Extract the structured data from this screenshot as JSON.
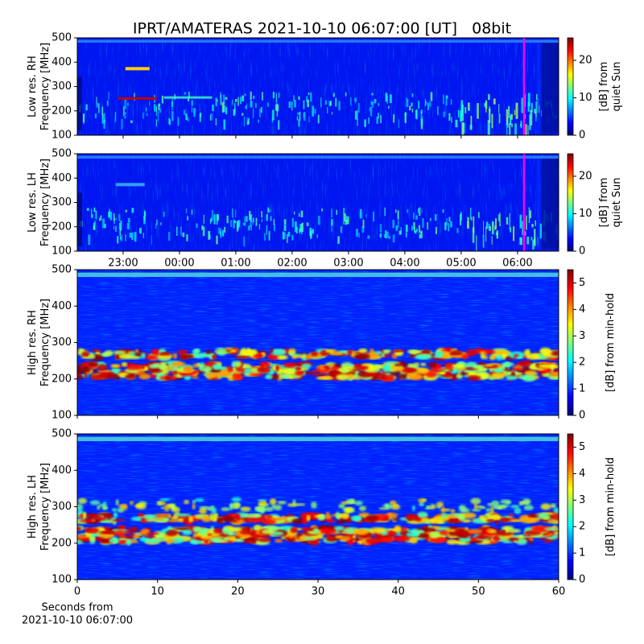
{
  "title": "IPRT/AMATERAS 2021-10-10 06:07:00 [UT]   08bit",
  "chart_data": [
    {
      "type": "heatmap",
      "ylabel": [
        "Low res. RH",
        "Frequency [MHz]"
      ],
      "ylim": [
        100,
        500
      ],
      "yticks": [
        100,
        200,
        300,
        400,
        500
      ],
      "xlim": [
        22.186,
        30.73
      ],
      "colormap": "jet",
      "colorbar": {
        "label": [
          "[dB] from",
          "quiet Sun"
        ],
        "clim": [
          0,
          26
        ],
        "ticks": [
          0,
          10,
          20
        ]
      }
    },
    {
      "type": "heatmap",
      "ylabel": [
        "Low res. LH",
        "Frequency [MHz]"
      ],
      "ylim": [
        100,
        500
      ],
      "yticks": [
        100,
        200,
        300,
        400,
        500
      ],
      "xlim": [
        22.186,
        30.73
      ],
      "colormap": "jet",
      "xticks": [
        {
          "value": 23,
          "label": "23:00"
        },
        {
          "value": 24,
          "label": "00:00"
        },
        {
          "value": 25,
          "label": "01:00"
        },
        {
          "value": 26,
          "label": "02:00"
        },
        {
          "value": 27,
          "label": "03:00"
        },
        {
          "value": 28,
          "label": "04:00"
        },
        {
          "value": 29,
          "label": "05:00"
        },
        {
          "value": 30,
          "label": "06:00"
        }
      ],
      "colorbar": {
        "label": [
          "[dB] from",
          "quiet Sun"
        ],
        "clim": [
          0,
          26
        ],
        "ticks": [
          0,
          10,
          20
        ]
      }
    },
    {
      "type": "heatmap",
      "ylabel": [
        "High res. RH",
        "Frequency [MHz]"
      ],
      "ylim": [
        100,
        500
      ],
      "yticks": [
        100,
        200,
        300,
        400,
        500
      ],
      "xlim": [
        0,
        60
      ],
      "colormap": "jet",
      "colorbar": {
        "label": [
          "[dB] from min-hold"
        ],
        "clim": [
          0,
          5.5
        ],
        "ticks": [
          0,
          1,
          2,
          3,
          4,
          5
        ]
      }
    },
    {
      "type": "heatmap",
      "ylabel": [
        "High res. LH",
        "Frequency [MHz]"
      ],
      "ylim": [
        100,
        500
      ],
      "yticks": [
        100,
        200,
        300,
        400,
        500
      ],
      "xlim": [
        0,
        60
      ],
      "xticks": [
        0,
        10,
        20,
        30,
        40,
        50,
        60
      ],
      "colormap": "jet",
      "xlabel": [
        "Seconds from",
        "2021-10-10 06:07:00"
      ],
      "colorbar": {
        "label": [
          "[dB] from min-hold"
        ],
        "clim": [
          0,
          5.5
        ],
        "ticks": [
          0,
          1,
          2,
          3,
          4,
          5
        ]
      }
    }
  ]
}
